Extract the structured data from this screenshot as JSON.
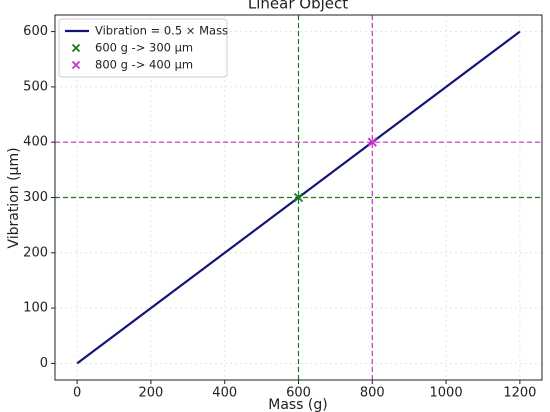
{
  "chart_data": {
    "type": "line",
    "title": "Linear Object",
    "xlabel": "Mass (g)",
    "ylabel": "Vibration (µm)",
    "xlim": [
      -60,
      1260
    ],
    "ylim": [
      -30,
      630
    ],
    "xticks": [
      0,
      200,
      400,
      600,
      800,
      1000,
      1200
    ],
    "yticks": [
      0,
      100,
      200,
      300,
      400,
      500,
      600
    ],
    "grid": true,
    "legend": "upper left",
    "series": [
      {
        "name": "Vibration = 0.5 × Mass",
        "color": "#141478",
        "type": "line",
        "x": [
          0,
          1200
        ],
        "values": [
          0,
          600
        ]
      },
      {
        "name": "600 g -> 300 µm",
        "color": "#1a7a1a",
        "type": "scatter",
        "x": [
          600
        ],
        "values": [
          300
        ],
        "guides": true
      },
      {
        "name": "800 g -> 400 µm",
        "color": "#c832c8",
        "type": "scatter",
        "x": [
          800
        ],
        "values": [
          400
        ],
        "guides": true
      }
    ]
  }
}
